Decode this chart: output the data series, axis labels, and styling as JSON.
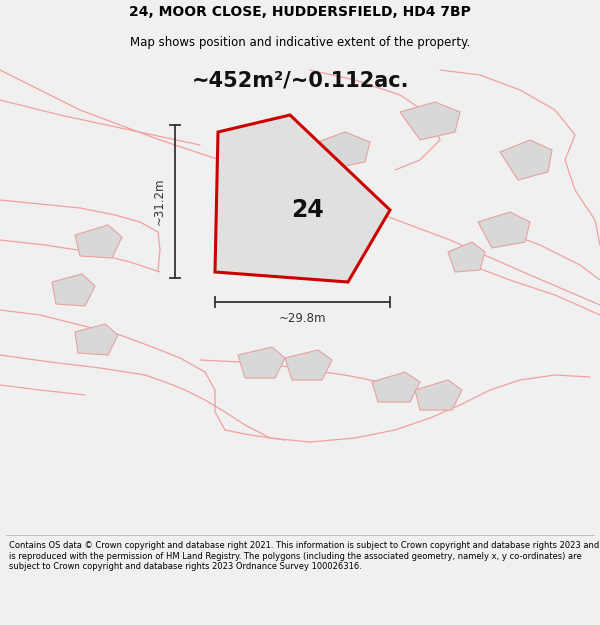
{
  "title": "24, MOOR CLOSE, HUDDERSFIELD, HD4 7BP",
  "subtitle": "Map shows position and indicative extent of the property.",
  "area_text": "~452m²/~0.112ac.",
  "label_24": "24",
  "dim_height": "~31.2m",
  "dim_width": "~29.8m",
  "footer": "Contains OS data © Crown copyright and database right 2021. This information is subject to Crown copyright and database rights 2023 and is reproduced with the permission of HM Land Registry. The polygons (including the associated geometry, namely x, y co-ordinates) are subject to Crown copyright and database rights 2023 Ordnance Survey 100026316.",
  "bg_color": "#f0f0f0",
  "map_bg": "#ffffff",
  "plot_fill": "#e0e0e0",
  "plot_outline": "#cc0000",
  "neighbor_fill": "#d8d8d8",
  "neighbor_stroke": "#e8a0a0",
  "road_color": "#f0a0a0",
  "title_color": "#000000",
  "footer_color": "#000000",
  "dim_color": "#333333",
  "title_fontsize": 10,
  "subtitle_fontsize": 8.5,
  "area_fontsize": 15,
  "label_fontsize": 17,
  "dim_fontsize": 8.5,
  "footer_fontsize": 6.0
}
